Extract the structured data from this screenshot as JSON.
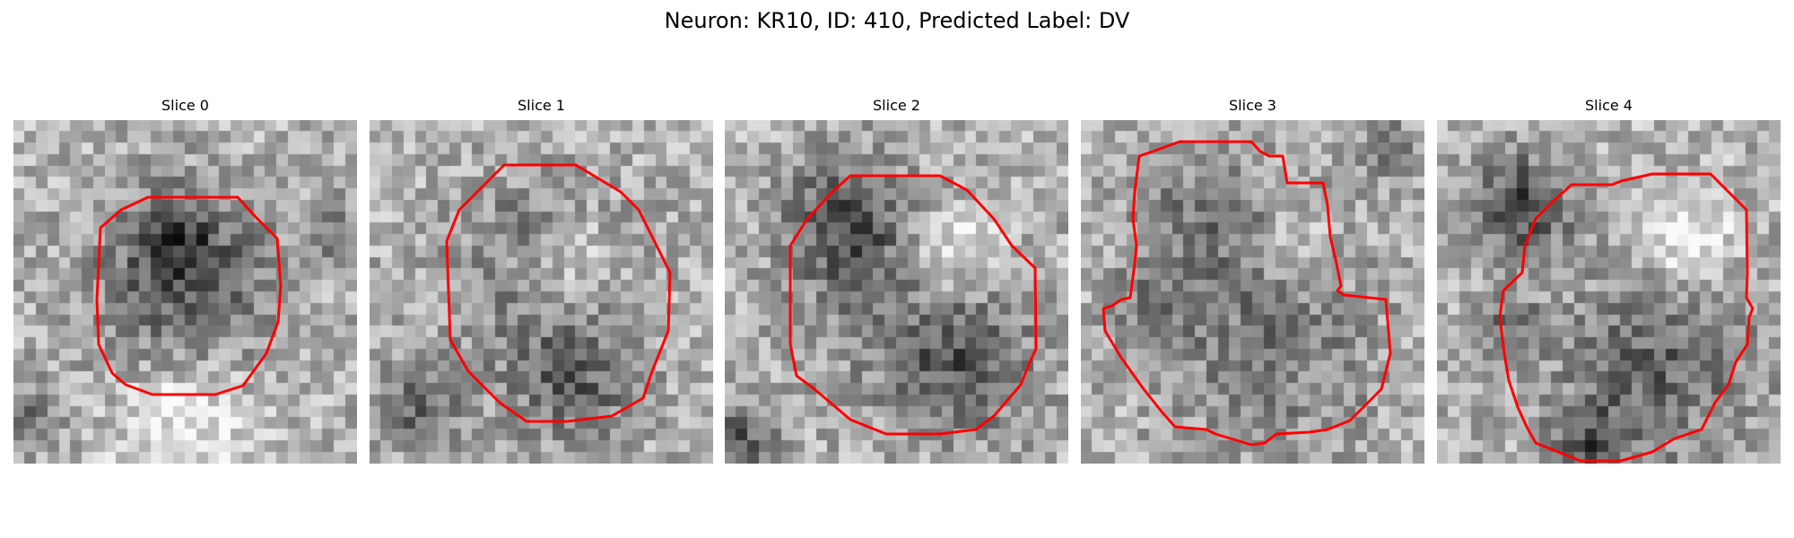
{
  "figure": {
    "title": "Neuron: KR10, ID: 410, Predicted Label: DV"
  },
  "slices": [
    {
      "label": "Slice 0"
    },
    {
      "label": "Slice 1"
    },
    {
      "label": "Slice 2"
    },
    {
      "label": "Slice 3"
    },
    {
      "label": "Slice 4"
    }
  ],
  "colors": {
    "contour": "#ff0000",
    "colormap": "gray"
  }
}
